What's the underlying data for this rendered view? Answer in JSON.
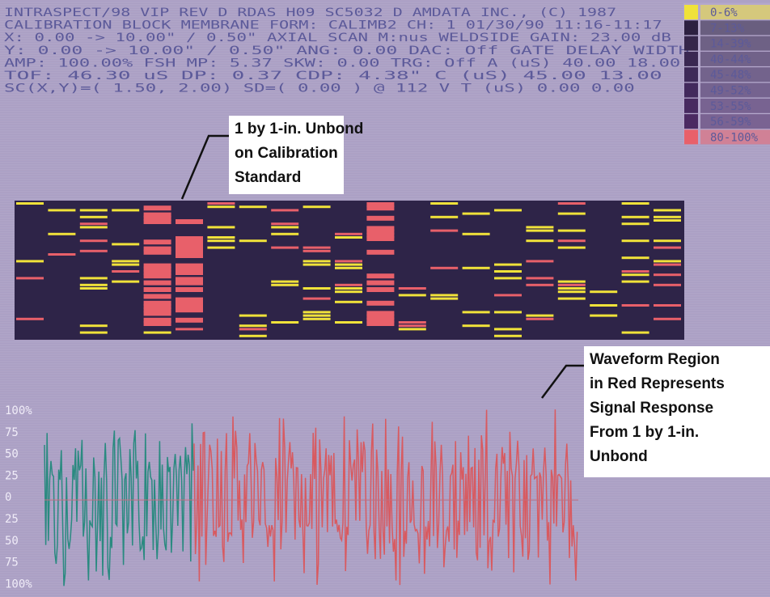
{
  "header_lines": [
    "INTRASPECT/98 VIP REV D  RDAS H09  SC5032 D   AMDATA INC., (C) 1987",
    "CALIBRATION BLOCK MEMBRANE  FORM: CALIMB2  CH: 1   01/30/90  11:16-11:17",
    "X:     0.00 ->   10.00\" / 0.50\"  AXIAL SCAN M:nus WELDSIDE GAIN: 23.00 dB",
    "Y:     0.00 ->   10.00\" / 0.50\"  ANG:   0.00 DAC: Off GATE     DELAY  WIDTH",
    "AMP: 100.00% FSH   MP:    5.37   SKW:   0.00 TRG: Off A (uS)  40.00  18.00",
    "TOF:   46.30 uS    DP:    0.37   CDP:  4.38\"        C (uS)  45.00  13.00",
    "SC(X,Y)=(   1.50,    2.00)  SD=( 0.00 ) @ 112 V  T (uS)   0.00   0.00"
  ],
  "legend": [
    {
      "label": "0-6%",
      "color": "#f0e23a"
    },
    {
      "label": "7-13%",
      "color": "#2c2040"
    },
    {
      "label": "14-39%",
      "color": "#35264a"
    },
    {
      "label": "40-44%",
      "color": "#3a2852"
    },
    {
      "label": "45-48%",
      "color": "#3e2a58"
    },
    {
      "label": "49-52%",
      "color": "#42295c"
    },
    {
      "label": "53-55%",
      "color": "#472a60"
    },
    {
      "label": "56-59%",
      "color": "#4b2a62"
    },
    {
      "label": "80-100%",
      "color": "#e8606a"
    }
  ],
  "callouts": [
    {
      "lines": [
        "1 by 1-in. Unbond",
        "on Calibration",
        "Standard"
      ]
    },
    {
      "lines": [
        "Waveform Region",
        "in Red Represents",
        "Signal Response",
        "From 1 by 1-in.",
        "Unbond"
      ]
    }
  ],
  "waveform_axis_labels": [
    "100%",
    "75",
    "50",
    "25",
    "0",
    "25",
    "50",
    "75",
    "100%"
  ]
}
